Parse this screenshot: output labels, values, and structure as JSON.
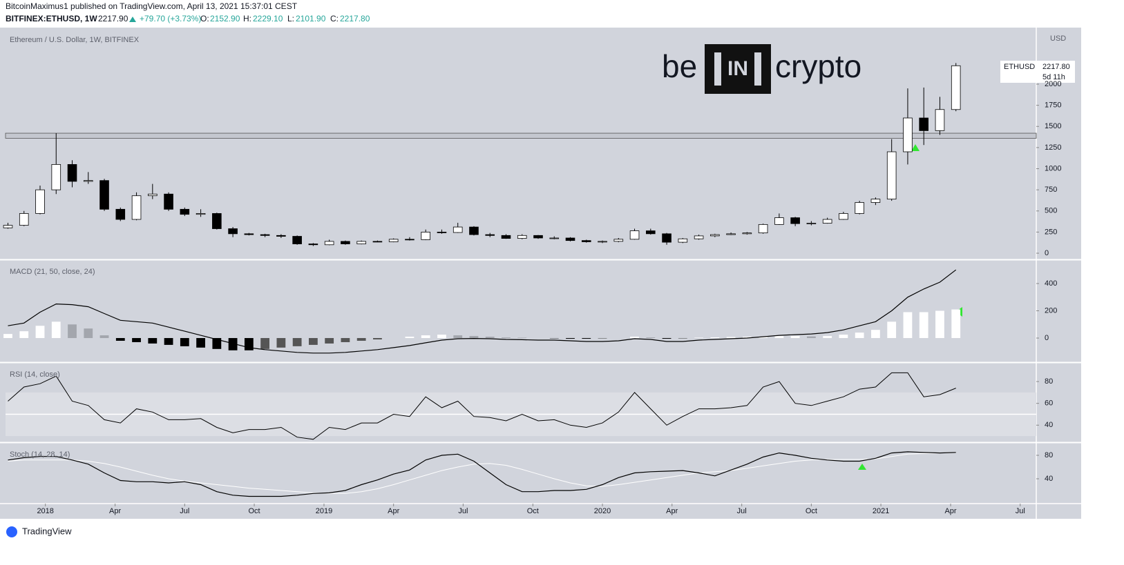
{
  "header": {
    "publisher": "BitcoinMaximus1 published on TradingView.com, April 13, 2021 15:37:01 CEST",
    "symbol": "BITFINEX:ETHUSD, 1W",
    "last": "2217.90",
    "change": "+79.70 (+3.73%)",
    "ohlc": [
      [
        "O:",
        "2152.90"
      ],
      [
        "H:",
        "2229.10"
      ],
      [
        "L:",
        "2101.90"
      ],
      [
        "C:",
        "2217.80"
      ]
    ]
  },
  "logo": {
    "left": "be",
    "mid": "IN",
    "right": "crypto"
  },
  "price_tag": {
    "symbol": "ETHUSD",
    "price": "2217.80",
    "countdown": "5d 11h"
  },
  "footer": "TradingView",
  "chart_data": [
    {
      "type": "candlestick",
      "title": "Ethereum / U.S. Dollar, 1W, BITFINEX",
      "y_unit": "USD",
      "up_color": "#ffffff",
      "down_color": "#000000",
      "open": [
        300,
        330,
        470,
        750,
        1050,
        850,
        860,
        520,
        400,
        680,
        700,
        520,
        460,
        470,
        290,
        230,
        220,
        210,
        200,
        110,
        100,
        140,
        110,
        140,
        135,
        165,
        160,
        250,
        245,
        310,
        220,
        210,
        175,
        210,
        180,
        180,
        150,
        135,
        140,
        165,
        265,
        230,
        130,
        170,
        205,
        220,
        230,
        240,
        340,
        420,
        350,
        355,
        400,
        470,
        600,
        640,
        1200,
        1600,
        1450,
        1700
      ],
      "high": [
        360,
        500,
        800,
        1420,
        1100,
        960,
        880,
        540,
        720,
        820,
        720,
        540,
        520,
        480,
        310,
        240,
        230,
        225,
        210,
        120,
        160,
        150,
        150,
        150,
        175,
        190,
        280,
        280,
        360,
        320,
        240,
        225,
        225,
        215,
        200,
        190,
        160,
        150,
        180,
        290,
        290,
        240,
        180,
        220,
        230,
        245,
        250,
        350,
        470,
        430,
        380,
        420,
        490,
        620,
        660,
        1350,
        1950,
        1960,
        1850,
        2250
      ],
      "low": [
        290,
        320,
        460,
        700,
        780,
        820,
        500,
        380,
        390,
        640,
        500,
        440,
        430,
        280,
        190,
        210,
        190,
        180,
        100,
        85,
        95,
        100,
        105,
        130,
        130,
        150,
        155,
        230,
        240,
        210,
        190,
        170,
        165,
        170,
        165,
        140,
        125,
        120,
        130,
        160,
        220,
        100,
        120,
        160,
        190,
        215,
        220,
        230,
        335,
        320,
        330,
        350,
        395,
        460,
        570,
        620,
        1050,
        1280,
        1400,
        1680
      ],
      "close": [
        330,
        470,
        750,
        1050,
        850,
        860,
        520,
        400,
        680,
        700,
        520,
        460,
        470,
        290,
        230,
        220,
        210,
        200,
        110,
        100,
        140,
        110,
        140,
        135,
        165,
        160,
        250,
        245,
        310,
        220,
        210,
        175,
        210,
        180,
        180,
        150,
        135,
        140,
        165,
        265,
        230,
        130,
        170,
        205,
        220,
        230,
        240,
        340,
        420,
        350,
        355,
        400,
        470,
        600,
        640,
        1200,
        1600,
        1450,
        1700,
        2218
      ],
      "band": [
        1360,
        1420
      ],
      "ylim": [
        -65,
        2653
      ],
      "yticks": [
        0,
        250,
        500,
        750,
        1000,
        1250,
        1500,
        1750,
        2000
      ],
      "xlim": [
        -0.15,
        64
      ],
      "xticks": [
        {
          "value": 2.33,
          "label": "2018"
        },
        {
          "value": 6.67,
          "label": "Apr"
        },
        {
          "value": 11,
          "label": "Jul"
        },
        {
          "value": 15.33,
          "label": "Oct"
        },
        {
          "value": 19.67,
          "label": "2019"
        },
        {
          "value": 24,
          "label": "Apr"
        },
        {
          "value": 28.33,
          "label": "Jul"
        },
        {
          "value": 32.67,
          "label": "Oct"
        },
        {
          "value": 37,
          "label": "2020"
        },
        {
          "value": 41.33,
          "label": "Apr"
        },
        {
          "value": 45.67,
          "label": "Jul"
        },
        {
          "value": 50,
          "label": "Oct"
        },
        {
          "value": 54.33,
          "label": "2021"
        },
        {
          "value": 58.67,
          "label": "Apr"
        },
        {
          "value": 63,
          "label": "Jul"
        }
      ]
    },
    {
      "type": "macd",
      "title": "MACD (21, 50, close, 24)",
      "line_color": "#000000",
      "macd": [
        90,
        110,
        190,
        250,
        245,
        230,
        180,
        130,
        120,
        110,
        80,
        50,
        20,
        -10,
        -40,
        -70,
        -85,
        -95,
        -105,
        -110,
        -110,
        -105,
        -95,
        -85,
        -70,
        -55,
        -35,
        -15,
        -5,
        -3,
        -5,
        -10,
        -12,
        -15,
        -15,
        -20,
        -25,
        -25,
        -20,
        -5,
        -10,
        -25,
        -25,
        -15,
        -10,
        -5,
        0,
        10,
        20,
        25,
        30,
        40,
        60,
        90,
        120,
        200,
        300,
        360,
        410,
        500
      ],
      "histogram": [
        30,
        50,
        90,
        120,
        100,
        70,
        20,
        -20,
        -30,
        -40,
        -50,
        -60,
        -70,
        -80,
        -90,
        -90,
        -80,
        -70,
        -60,
        -50,
        -40,
        -30,
        -20,
        -10,
        0,
        10,
        20,
        25,
        20,
        15,
        10,
        5,
        3,
        0,
        -2,
        -5,
        -5,
        -3,
        0,
        10,
        5,
        -5,
        -3,
        3,
        5,
        8,
        10,
        10,
        15,
        15,
        12,
        15,
        25,
        40,
        60,
        120,
        190,
        190,
        200,
        210
      ],
      "ylim": [
        -177,
        567
      ],
      "yticks": [
        0,
        200,
        400
      ]
    },
    {
      "type": "rsi",
      "title": "RSI (14, close)",
      "line_color": "#000000",
      "band": [
        30,
        70
      ],
      "midline": 50,
      "values": [
        62,
        75,
        78,
        85,
        62,
        58,
        45,
        42,
        55,
        52,
        45,
        45,
        46,
        38,
        33,
        36,
        36,
        38,
        29,
        27,
        38,
        36,
        42,
        42,
        50,
        48,
        66,
        56,
        62,
        48,
        47,
        44,
        50,
        44,
        45,
        40,
        38,
        42,
        52,
        70,
        55,
        40,
        48,
        55,
        55,
        56,
        58,
        75,
        80,
        60,
        58,
        62,
        66,
        73,
        75,
        88,
        88,
        66,
        68,
        74
      ],
      "ylim": [
        25,
        96.5
      ],
      "yticks": [
        40,
        60,
        80
      ]
    },
    {
      "type": "stoch",
      "title": "Stoch (14, 28, 14)",
      "k_color": "#000000",
      "d_color": "#ffffff",
      "k": [
        72,
        76,
        78,
        78,
        72,
        65,
        50,
        37,
        35,
        35,
        33,
        35,
        30,
        18,
        12,
        10,
        10,
        10,
        12,
        15,
        16,
        20,
        30,
        38,
        48,
        55,
        72,
        80,
        82,
        70,
        50,
        30,
        18,
        18,
        20,
        20,
        22,
        30,
        42,
        50,
        52,
        53,
        54,
        50,
        45,
        55,
        65,
        77,
        84,
        80,
        75,
        72,
        70,
        70,
        75,
        84,
        86,
        85,
        84,
        85
      ],
      "d": [
        70,
        72,
        72,
        72,
        72,
        70,
        66,
        60,
        53,
        46,
        40,
        36,
        33,
        30,
        27,
        24,
        22,
        20,
        18,
        16,
        15,
        15,
        18,
        23,
        30,
        38,
        46,
        54,
        60,
        65,
        66,
        63,
        56,
        48,
        40,
        33,
        28,
        27,
        30,
        34,
        38,
        42,
        46,
        50,
        52,
        54,
        58,
        62,
        66,
        70,
        72,
        73,
        73,
        73,
        74,
        78,
        82,
        83,
        84,
        85
      ],
      "ylim": [
        0,
        100
      ],
      "yticks": [
        40,
        80
      ]
    }
  ]
}
